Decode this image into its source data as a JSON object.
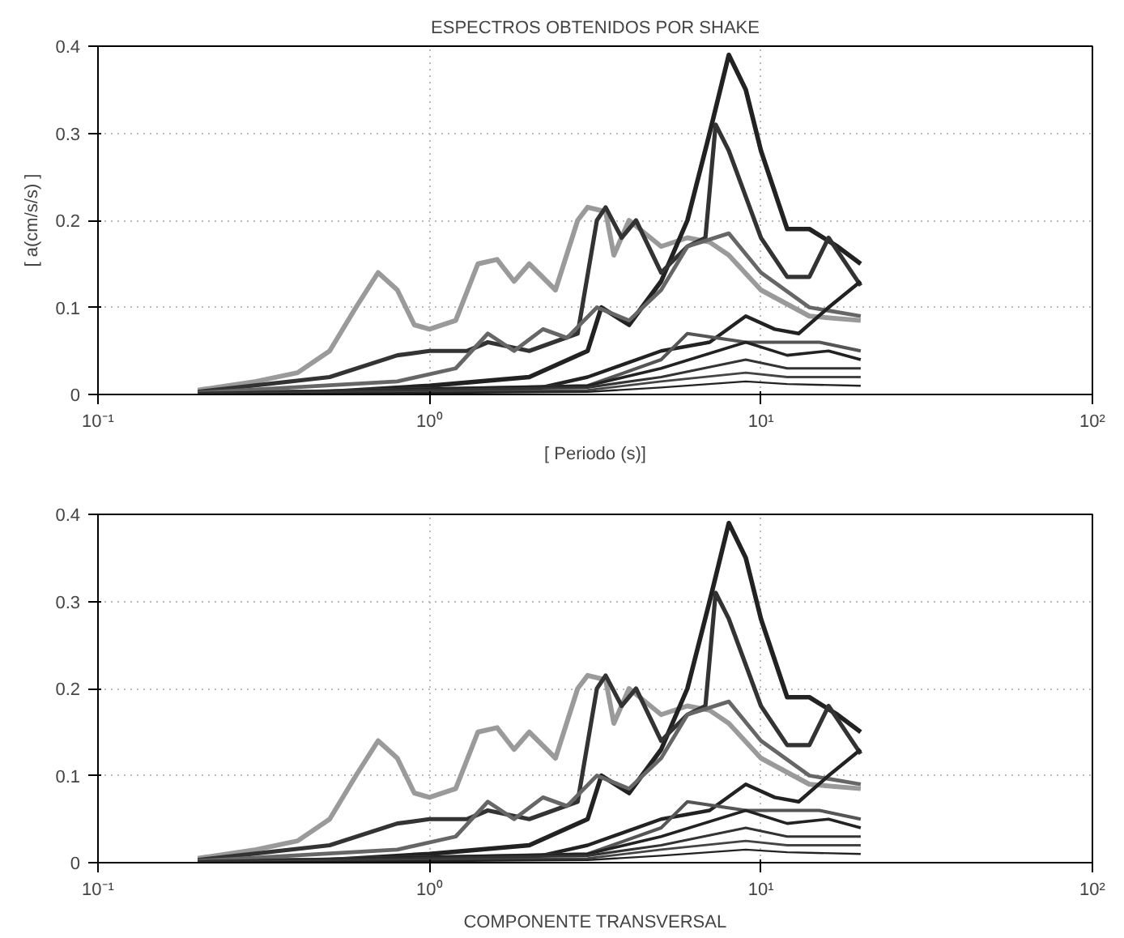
{
  "chart_data": [
    {
      "type": "line",
      "title": "ESPECTROS OBTENIDOS POR SHAKE",
      "xlabel": "[ Periodo (s)]",
      "ylabel": "[ a(cm/s/s) ]",
      "log": "x",
      "grid": true,
      "line_style": "solid",
      "xlim": [
        0.1,
        100
      ],
      "xticks": [
        {
          "value": 0.1,
          "label": "10⁻¹"
        },
        {
          "value": 1,
          "label": "10⁰"
        },
        {
          "value": 10,
          "label": "10¹"
        },
        {
          "value": 100,
          "label": "10²"
        }
      ],
      "ylim": [
        0,
        0.4
      ],
      "yticks": [
        0,
        0.1,
        0.2,
        0.3,
        0.4
      ],
      "series": [
        {
          "color": "#9a9a9a",
          "x": [
            0.2,
            0.3,
            0.4,
            0.5,
            0.6,
            0.7,
            0.8,
            0.9,
            1.0,
            1.2,
            1.4,
            1.6,
            1.8,
            2.0,
            2.4,
            2.8,
            3.0,
            3.4,
            3.6,
            4.0,
            5,
            6,
            7,
            8,
            10,
            14,
            20
          ],
          "values": [
            0.005,
            0.015,
            0.025,
            0.05,
            0.1,
            0.14,
            0.12,
            0.08,
            0.075,
            0.085,
            0.15,
            0.155,
            0.13,
            0.15,
            0.12,
            0.2,
            0.215,
            0.21,
            0.16,
            0.2,
            0.17,
            0.18,
            0.175,
            0.16,
            0.12,
            0.09,
            0.085
          ]
        },
        {
          "color": "#222222",
          "x": [
            0.2,
            0.5,
            1,
            2,
            3,
            3.3,
            4,
            5,
            6,
            7,
            8,
            9,
            10,
            12,
            14,
            17,
            20
          ],
          "values": [
            0.002,
            0.003,
            0.01,
            0.02,
            0.05,
            0.1,
            0.08,
            0.13,
            0.2,
            0.3,
            0.39,
            0.35,
            0.28,
            0.19,
            0.19,
            0.17,
            0.15
          ]
        },
        {
          "color": "#333333",
          "x": [
            0.2,
            0.5,
            0.8,
            1.0,
            1.3,
            1.5,
            2,
            2.8,
            3.2,
            3.4,
            3.8,
            4.2,
            5,
            6,
            6.8,
            7.3,
            8,
            10,
            12,
            14,
            16,
            20
          ],
          "values": [
            0.003,
            0.02,
            0.045,
            0.05,
            0.05,
            0.06,
            0.05,
            0.07,
            0.2,
            0.215,
            0.18,
            0.2,
            0.14,
            0.17,
            0.18,
            0.31,
            0.28,
            0.18,
            0.135,
            0.135,
            0.18,
            0.125
          ]
        },
        {
          "color": "#666666",
          "x": [
            0.2,
            0.8,
            1.2,
            1.5,
            1.8,
            2.2,
            2.6,
            3.2,
            4,
            5,
            6,
            8,
            10,
            14,
            20
          ],
          "values": [
            0.002,
            0.015,
            0.03,
            0.07,
            0.05,
            0.075,
            0.065,
            0.1,
            0.085,
            0.12,
            0.17,
            0.185,
            0.14,
            0.1,
            0.09
          ]
        },
        {
          "color": "#222222",
          "x": [
            0.2,
            2,
            3,
            5,
            7,
            9,
            11,
            13,
            16,
            20
          ],
          "values": [
            0.001,
            0.005,
            0.02,
            0.05,
            0.06,
            0.09,
            0.075,
            0.07,
            0.1,
            0.13
          ]
        },
        {
          "color": "#555555",
          "x": [
            0.2,
            3,
            5,
            6,
            9,
            15,
            20
          ],
          "values": [
            0.001,
            0.01,
            0.04,
            0.07,
            0.06,
            0.06,
            0.05
          ]
        },
        {
          "color": "#222222",
          "x": [
            0.2,
            3,
            5,
            9,
            12,
            16,
            20
          ],
          "values": [
            0.001,
            0.01,
            0.03,
            0.06,
            0.045,
            0.05,
            0.04
          ]
        },
        {
          "color": "#333333",
          "x": [
            0.2,
            3,
            5,
            9,
            12,
            20
          ],
          "values": [
            0.001,
            0.008,
            0.02,
            0.04,
            0.03,
            0.03
          ]
        },
        {
          "color": "#444444",
          "x": [
            0.2,
            3,
            5,
            9,
            12,
            20
          ],
          "values": [
            0.0,
            0.005,
            0.015,
            0.025,
            0.02,
            0.02
          ]
        },
        {
          "color": "#222222",
          "x": [
            0.2,
            3,
            5,
            9,
            12,
            20
          ],
          "values": [
            0.0,
            0.003,
            0.008,
            0.015,
            0.012,
            0.01
          ]
        }
      ]
    },
    {
      "type": "line",
      "xlabel": "COMPONENTE TRANSVERSAL",
      "log": "x",
      "grid": true,
      "line_style": "solid",
      "xlim": [
        0.1,
        100
      ],
      "xticks": [
        {
          "value": 0.1,
          "label": "10⁻¹"
        },
        {
          "value": 1,
          "label": "10⁰"
        },
        {
          "value": 10,
          "label": "10¹"
        },
        {
          "value": 100,
          "label": "10²"
        }
      ],
      "ylim": [
        0,
        0.4
      ],
      "yticks": [
        0,
        0.1,
        0.2,
        0.3,
        0.4
      ],
      "series": [
        {
          "color": "#9a9a9a",
          "x": [
            0.2,
            0.3,
            0.4,
            0.5,
            0.6,
            0.7,
            0.8,
            0.9,
            1.0,
            1.2,
            1.4,
            1.6,
            1.8,
            2.0,
            2.4,
            2.8,
            3.0,
            3.4,
            3.6,
            4.0,
            5,
            6,
            7,
            8,
            10,
            14,
            20
          ],
          "values": [
            0.005,
            0.015,
            0.025,
            0.05,
            0.1,
            0.14,
            0.12,
            0.08,
            0.075,
            0.085,
            0.15,
            0.155,
            0.13,
            0.15,
            0.12,
            0.2,
            0.215,
            0.21,
            0.16,
            0.2,
            0.17,
            0.18,
            0.175,
            0.16,
            0.12,
            0.09,
            0.085
          ]
        },
        {
          "color": "#222222",
          "x": [
            0.2,
            0.5,
            1,
            2,
            3,
            3.3,
            4,
            5,
            6,
            7,
            8,
            9,
            10,
            12,
            14,
            17,
            20
          ],
          "values": [
            0.002,
            0.003,
            0.01,
            0.02,
            0.05,
            0.1,
            0.08,
            0.13,
            0.2,
            0.3,
            0.39,
            0.35,
            0.28,
            0.19,
            0.19,
            0.17,
            0.15
          ]
        },
        {
          "color": "#333333",
          "x": [
            0.2,
            0.5,
            0.8,
            1.0,
            1.3,
            1.5,
            2,
            2.8,
            3.2,
            3.4,
            3.8,
            4.2,
            5,
            6,
            6.8,
            7.3,
            8,
            10,
            12,
            14,
            16,
            20
          ],
          "values": [
            0.003,
            0.02,
            0.045,
            0.05,
            0.05,
            0.06,
            0.05,
            0.07,
            0.2,
            0.215,
            0.18,
            0.2,
            0.14,
            0.17,
            0.18,
            0.31,
            0.28,
            0.18,
            0.135,
            0.135,
            0.18,
            0.125
          ]
        },
        {
          "color": "#666666",
          "x": [
            0.2,
            0.8,
            1.2,
            1.5,
            1.8,
            2.2,
            2.6,
            3.2,
            4,
            5,
            6,
            8,
            10,
            14,
            20
          ],
          "values": [
            0.002,
            0.015,
            0.03,
            0.07,
            0.05,
            0.075,
            0.065,
            0.1,
            0.085,
            0.12,
            0.17,
            0.185,
            0.14,
            0.1,
            0.09
          ]
        },
        {
          "color": "#222222",
          "x": [
            0.2,
            2,
            3,
            5,
            7,
            9,
            11,
            13,
            16,
            20
          ],
          "values": [
            0.001,
            0.005,
            0.02,
            0.05,
            0.06,
            0.09,
            0.075,
            0.07,
            0.1,
            0.13
          ]
        },
        {
          "color": "#555555",
          "x": [
            0.2,
            3,
            5,
            6,
            9,
            15,
            20
          ],
          "values": [
            0.001,
            0.01,
            0.04,
            0.07,
            0.06,
            0.06,
            0.05
          ]
        },
        {
          "color": "#222222",
          "x": [
            0.2,
            3,
            5,
            9,
            12,
            16,
            20
          ],
          "values": [
            0.001,
            0.01,
            0.03,
            0.06,
            0.045,
            0.05,
            0.04
          ]
        },
        {
          "color": "#333333",
          "x": [
            0.2,
            3,
            5,
            9,
            12,
            20
          ],
          "values": [
            0.001,
            0.008,
            0.02,
            0.04,
            0.03,
            0.03
          ]
        },
        {
          "color": "#444444",
          "x": [
            0.2,
            3,
            5,
            9,
            12,
            20
          ],
          "values": [
            0.0,
            0.005,
            0.015,
            0.025,
            0.02,
            0.02
          ]
        },
        {
          "color": "#222222",
          "x": [
            0.2,
            3,
            5,
            9,
            12,
            20
          ],
          "values": [
            0.0,
            0.003,
            0.008,
            0.015,
            0.012,
            0.01
          ]
        }
      ]
    }
  ]
}
